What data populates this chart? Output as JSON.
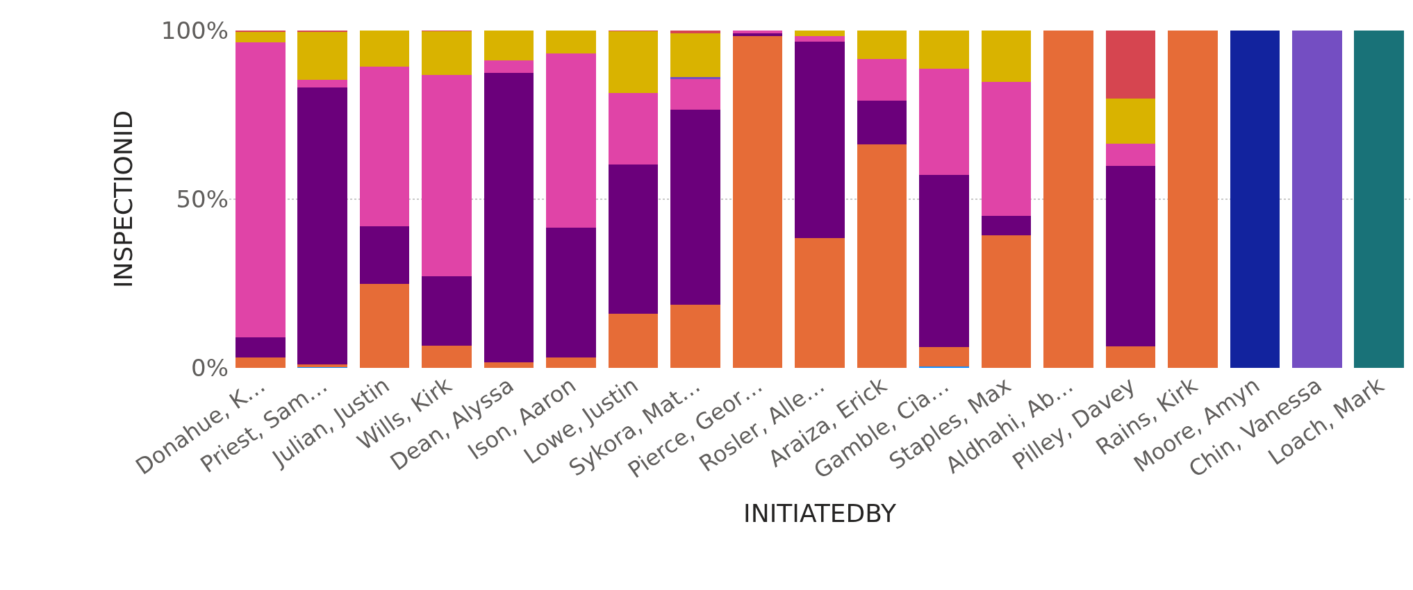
{
  "chart_data": {
    "type": "bar",
    "stacked": true,
    "xlabel": "INITIATEDBY",
    "ylabel": "INSPECTIONID",
    "categories": [
      "Donahue, K…",
      "Priest, Sam…",
      "Julian, Justin",
      "Wills, Kirk",
      "Dean, Alyssa",
      "Ison, Aaron",
      "Lowe, Justin",
      "Sykora, Mat…",
      "Pierce, Geor…",
      "Rosler, Alle…",
      "Araiza, Erick",
      "Gamble, Cia…",
      "Staples, Max",
      "Aldhahi, Ab…",
      "Pilley, Davey",
      "Rains, Kirk",
      "Moore, Amyn",
      "Chin, Vanessa",
      "Loach, Mark"
    ],
    "series": [
      {
        "color": "#118dff",
        "values": [
          null,
          0.3,
          null,
          null,
          null,
          null,
          null,
          null,
          null,
          null,
          null,
          0.5,
          null,
          null,
          null,
          null,
          null,
          null,
          null
        ]
      },
      {
        "color": "#12239e",
        "values": [
          null,
          null,
          null,
          null,
          null,
          null,
          null,
          null,
          null,
          null,
          null,
          null,
          null,
          null,
          null,
          null,
          100,
          null,
          null
        ]
      },
      {
        "color": "#e66c37",
        "values": [
          3,
          0.8,
          24.8,
          6.5,
          1.6,
          3,
          16.1,
          18.8,
          98.4,
          38.5,
          66.2,
          5.7,
          39.4,
          100,
          6.4,
          100,
          null,
          null,
          null
        ]
      },
      {
        "color": "#6b007b",
        "values": [
          6,
          82.1,
          17.1,
          20.6,
          85.8,
          38.5,
          44.1,
          57.7,
          0.8,
          58.3,
          13,
          51.1,
          5.6,
          null,
          53.4,
          null,
          null,
          null,
          null
        ]
      },
      {
        "color": "#e044a7",
        "values": [
          87.5,
          2.1,
          47.5,
          59.7,
          3.7,
          51.8,
          21.2,
          9.2,
          0.8,
          1.6,
          12.4,
          31.4,
          39.8,
          null,
          6.7,
          null,
          null,
          null,
          null
        ]
      },
      {
        "color": "#744ec2",
        "values": [
          null,
          null,
          null,
          null,
          null,
          null,
          null,
          0.5,
          null,
          null,
          null,
          null,
          null,
          null,
          null,
          null,
          null,
          100,
          null
        ]
      },
      {
        "color": "#d9b300",
        "values": [
          3,
          14.3,
          10.6,
          13,
          8.9,
          6.7,
          18.3,
          12.9,
          null,
          1.6,
          8.4,
          11.3,
          15.2,
          null,
          13.3,
          null,
          null,
          null,
          null
        ]
      },
      {
        "color": "#d64550",
        "values": [
          0.5,
          0.4,
          null,
          0.2,
          null,
          null,
          0.3,
          0.9,
          null,
          null,
          null,
          null,
          null,
          null,
          20.2,
          null,
          null,
          null,
          null
        ]
      },
      {
        "color": "#197278",
        "values": [
          null,
          null,
          null,
          null,
          null,
          null,
          null,
          null,
          null,
          null,
          null,
          null,
          null,
          null,
          null,
          null,
          null,
          null,
          100
        ]
      }
    ],
    "ylim": [
      0,
      100
    ],
    "yticks": [
      {
        "value": 0,
        "label": "0%"
      },
      {
        "value": 50,
        "label": "50%"
      },
      {
        "value": 100,
        "label": "100%"
      }
    ],
    "grid": "y"
  }
}
